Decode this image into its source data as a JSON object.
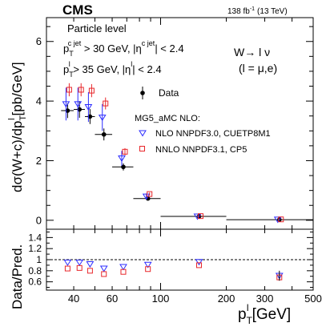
{
  "header": {
    "experiment": "CMS",
    "lumi": "138 fb",
    "lumi_exp": "-1",
    "energy": "(13 TeV)"
  },
  "annotations": {
    "particle_level": "Particle level",
    "cut1_pre": "p",
    "cut1_sub": "T",
    "cut1_sup": "c jet",
    "cut1_mid": " > 30 GeV, |η",
    "cut1_sup2": "c jet",
    "cut1_post": "| < 2.4",
    "cut2_pre": "p",
    "cut2_sub": "T",
    "cut2_sup": "l",
    "cut2_mid": " > 35 GeV, |η",
    "cut2_sup2": "l",
    "cut2_post": "| < 2.4",
    "process": "W→ l ν",
    "lepton": "(l = μ,e)"
  },
  "legend": {
    "data": "Data",
    "header": "MG5_aMC NLO:",
    "nlo": "NLO NNPDF3.0, CUETP8M1",
    "nnlo": "NNLO NNPDF3.1, CP5"
  },
  "chart_data": [
    {
      "type": "scatter",
      "panel": "main",
      "xlabel": "p_T^l [GeV]",
      "ylabel": "dσ(W+c)/dp_T^l [pb/GeV]",
      "xscale": "log",
      "xlim": [
        30,
        500
      ],
      "ylim": [
        -0.3,
        6.8
      ],
      "xticks": [
        100,
        200,
        300,
        500
      ],
      "xtick_labels": [
        "100",
        "200",
        "300",
        "500"
      ],
      "extra_xtick_labels": [
        {
          "x": 40,
          "label": "40"
        },
        {
          "x": 60,
          "label": "60"
        }
      ],
      "yticks": [
        0,
        2,
        4,
        6
      ],
      "ytick_labels": [
        "0",
        "2",
        "4",
        "6"
      ],
      "legend_position": "upper-center",
      "bins": [
        [
          35,
          40
        ],
        [
          40,
          45
        ],
        [
          45,
          50
        ],
        [
          50,
          60
        ],
        [
          60,
          75
        ],
        [
          75,
          100
        ],
        [
          100,
          200
        ],
        [
          200,
          500
        ]
      ],
      "series": [
        {
          "name": "Data",
          "marker": "filled-circle",
          "color": "#000000",
          "x": [
            37.5,
            42.5,
            47.5,
            55,
            67.5,
            87.5,
            150,
            350
          ],
          "y": [
            3.68,
            3.72,
            3.48,
            2.88,
            1.79,
            0.73,
            0.13,
            0.02
          ],
          "yerr": [
            0.25,
            0.28,
            0.25,
            0.2,
            0.12,
            0.06,
            0.015,
            0.005
          ]
        },
        {
          "name": "NLO NNPDF3.0, CUETP8M1",
          "marker": "open-triangle-down",
          "color": "#2c2cff",
          "x": [
            37.5,
            42.5,
            47.5,
            55,
            67.5,
            87.5,
            150,
            350
          ],
          "y": [
            3.9,
            3.9,
            3.8,
            3.45,
            2.08,
            0.8,
            0.13,
            0.025
          ],
          "yerr": [
            0.55,
            0.55,
            0.5,
            0.45,
            0.25,
            0.1,
            0.02,
            0.005
          ]
        },
        {
          "name": "NNLO NNPDF3.1, CP5",
          "marker": "open-square",
          "color": "#e8262a",
          "x": [
            37.5,
            42.5,
            47.5,
            55,
            67.5,
            87.5,
            150,
            350
          ],
          "y": [
            4.38,
            4.38,
            4.35,
            3.92,
            2.3,
            0.88,
            0.14,
            0.03
          ],
          "yerr": [
            0.22,
            0.22,
            0.22,
            0.2,
            0.12,
            0.05,
            0.01,
            0.004
          ]
        }
      ]
    },
    {
      "type": "scatter",
      "panel": "ratio",
      "xlabel": "p_T^l [GeV]",
      "ylabel": "Data/Pred.",
      "xscale": "log",
      "xlim": [
        30,
        500
      ],
      "ylim": [
        0.45,
        1.55
      ],
      "yticks": [
        0.6,
        0.8,
        1.0,
        1.2,
        1.4
      ],
      "ytick_labels": [
        "0.6",
        "0.8",
        "1",
        "1.2",
        "1.4"
      ],
      "reference_line": 1.0,
      "series": [
        {
          "name": "NLO NNPDF3.0, CUETP8M1",
          "marker": "open-triangle-down",
          "color": "#2c2cff",
          "x": [
            37.5,
            42.5,
            47.5,
            55,
            67.5,
            87.5,
            150,
            350
          ],
          "y": [
            0.95,
            0.95,
            0.92,
            0.84,
            0.87,
            0.91,
            0.96,
            0.71
          ]
        },
        {
          "name": "NNLO NNPDF3.1, CP5",
          "marker": "open-square",
          "color": "#e8262a",
          "x": [
            37.5,
            42.5,
            47.5,
            55,
            67.5,
            87.5,
            150,
            350
          ],
          "y": [
            0.84,
            0.85,
            0.8,
            0.74,
            0.78,
            0.83,
            0.9,
            0.68
          ]
        }
      ]
    }
  ]
}
